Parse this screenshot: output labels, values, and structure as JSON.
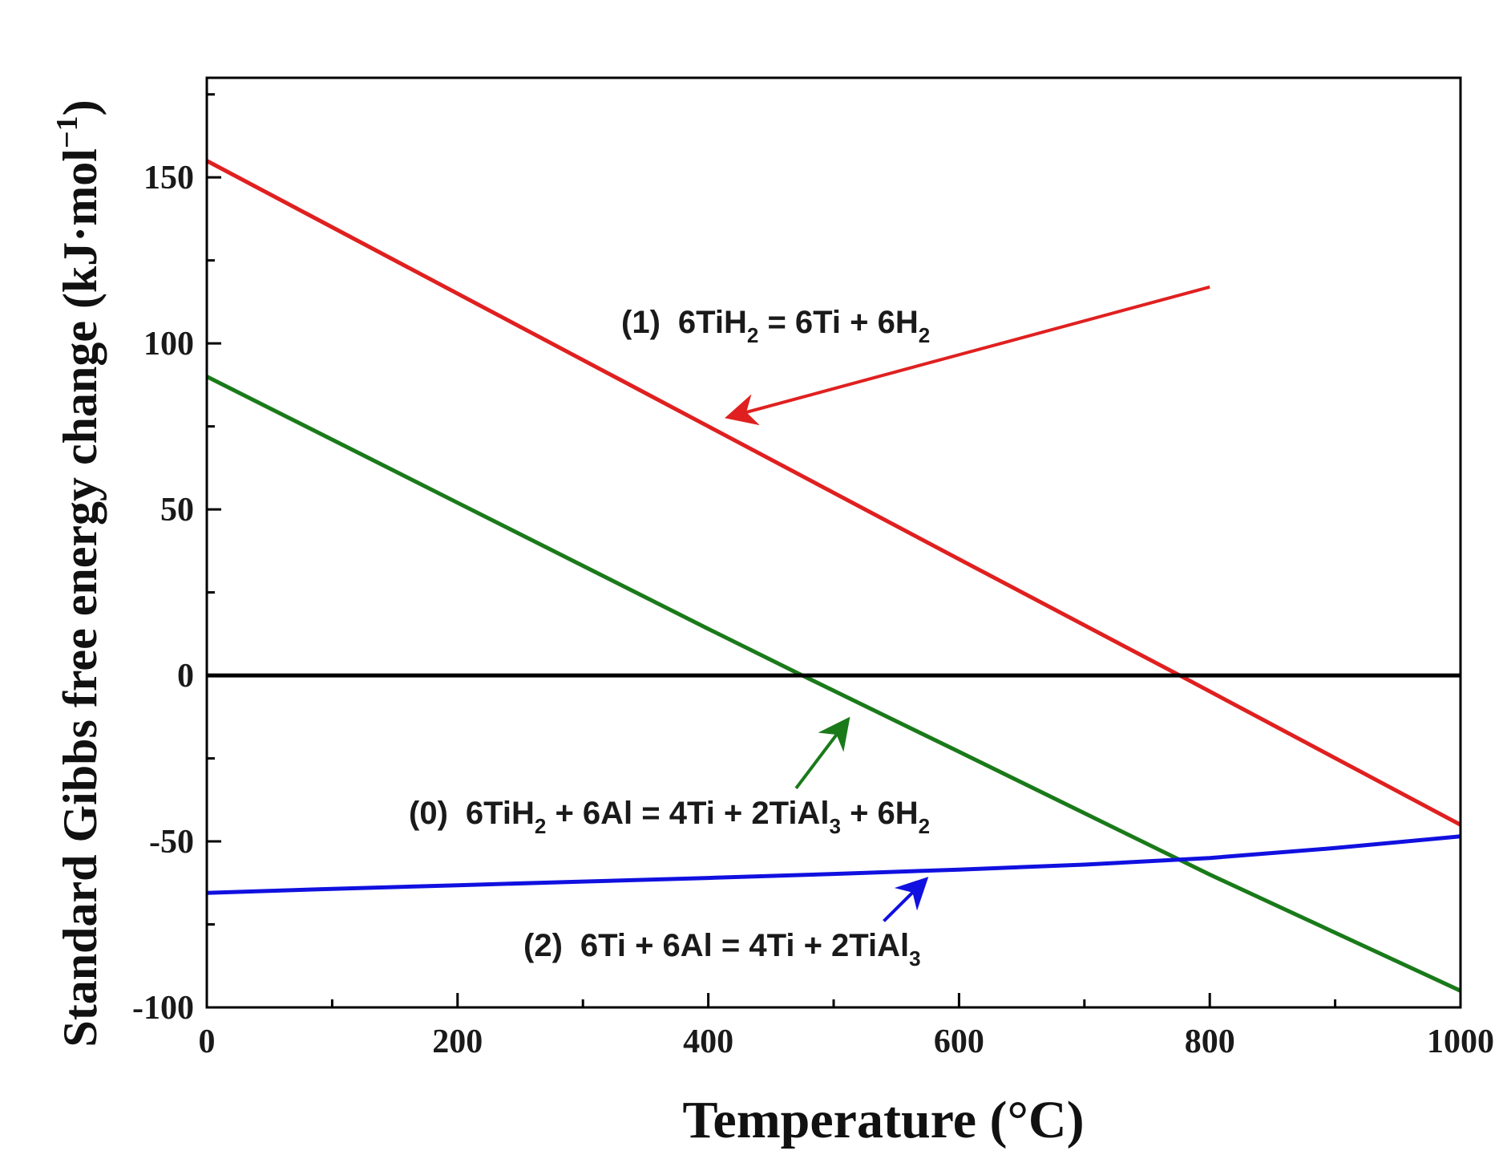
{
  "chart_data": {
    "type": "line",
    "title": "",
    "xlabel": "Temperature (°C)",
    "ylabel": {
      "main": "Standard Gibbs free energy change (kJ·mol",
      "superscript": "−1",
      "close": ")"
    },
    "xlim": [
      0,
      1000
    ],
    "ylim": [
      -100,
      180
    ],
    "x_ticks": [
      0,
      200,
      400,
      600,
      800,
      1000
    ],
    "x_minor_ticks": [
      100,
      300,
      500,
      700,
      900
    ],
    "y_ticks": [
      150,
      100,
      50,
      0,
      -50,
      -100
    ],
    "y_tick_labels": [
      "150",
      "100",
      "50",
      "0",
      "-50",
      "-100"
    ],
    "y_minor_ticks": [
      175,
      125,
      75,
      25,
      -25,
      -75
    ],
    "reference_line": {
      "y": 0,
      "color": "#000000"
    },
    "series": [
      {
        "name": "(1) 6TiH2 = 6Ti + 6H2",
        "color": "#e02020",
        "x": [
          0,
          200,
          400,
          600,
          776,
          1000
        ],
        "y": [
          155,
          115,
          75,
          35,
          0,
          -45
        ]
      },
      {
        "name": "(0) 6TiH2 + 6Al = 4Ti + 2TiAl3 + 6H2",
        "color": "#1a7a1a",
        "x": [
          0,
          200,
          400,
          475,
          600,
          800,
          1000
        ],
        "y": [
          90,
          52,
          14,
          0,
          -23,
          -60,
          -95
        ]
      },
      {
        "name": "(2) 6Ti + 6Al = 4Ti + 2TiAl3",
        "color": "#1010e0",
        "x": [
          0,
          100,
          200,
          300,
          400,
          500,
          600,
          700,
          800,
          900,
          1000
        ],
        "y": [
          -65.5,
          -64.3,
          -63.2,
          -62.1,
          -61,
          -59.8,
          -58.5,
          -57,
          -55,
          -52,
          -48.5
        ]
      }
    ],
    "annotations": [
      {
        "label": "(1)",
        "parts": [
          "6TiH",
          "2",
          " = 6Ti + 6H",
          "2"
        ],
        "color": "#e02020",
        "arrow_from": [
          800,
          117
        ],
        "arrow_to": [
          418,
          78
        ]
      },
      {
        "label": "(0)",
        "parts": [
          "6TiH",
          "2",
          " + 6Al = 4Ti + 2TiAl",
          "3",
          " + 6H",
          "2"
        ],
        "color": "#1a7a1a",
        "arrow_from": [
          470,
          -34
        ],
        "arrow_to": [
          510,
          -14
        ]
      },
      {
        "label": "(2)",
        "parts": [
          "6Ti + 6Al = 4Ti + 2TiAl",
          "3"
        ],
        "color": "#1010e0",
        "arrow_from": [
          540,
          -74
        ],
        "arrow_to": [
          572,
          -62
        ]
      }
    ]
  }
}
